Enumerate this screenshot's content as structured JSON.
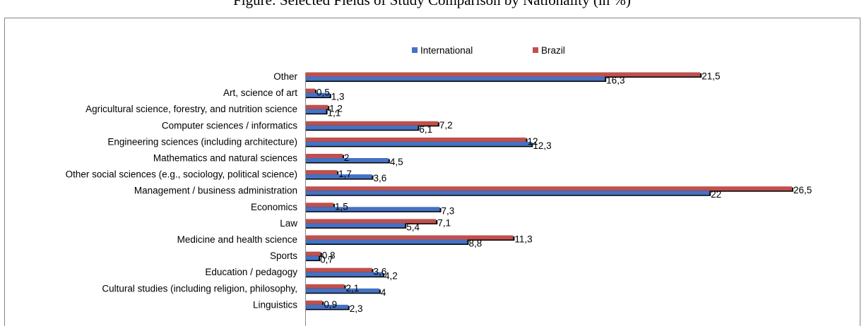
{
  "chart_data": {
    "type": "bar",
    "orientation": "horizontal",
    "title": "Figure: Selected Fields of Study Comparison by Nationality (in %)",
    "categories": [
      "Other",
      "Art, science of art",
      "Agricultural science, forestry, and nutrition science",
      "Computer sciences / informatics",
      "Engineering sciences (including architecture)",
      "Mathematics and natural sciences",
      "Other social sciences (e.g., sociology, political science)",
      "Management / business administration",
      "Economics",
      "Law",
      "Medicine and health science",
      "Sports",
      "Education / pedagogy",
      "Cultural studies (including religion, philosophy,",
      "Linguistics"
    ],
    "series": [
      {
        "name": "International",
        "color": "#4472C4",
        "values": [
          16.3,
          1.3,
          1.1,
          6.1,
          12.3,
          4.5,
          3.6,
          22,
          7.3,
          5.4,
          8.8,
          0.7,
          4.2,
          4,
          2.3
        ],
        "labels": [
          "16,3",
          "1,3",
          "1,1",
          "6,1",
          "12,3",
          "4,5",
          "3,6",
          "22",
          "7,3",
          "5,4",
          "8,8",
          "0,7",
          "4,2",
          "4",
          "2,3"
        ]
      },
      {
        "name": "Brazil",
        "color": "#C0504D",
        "values": [
          21.5,
          0.5,
          1.2,
          7.2,
          12,
          2,
          1.7,
          26.5,
          1.5,
          7.1,
          11.3,
          0.8,
          3.6,
          2.1,
          0.9
        ],
        "labels": [
          "21,5",
          "0,5",
          "1,2",
          "7,2",
          "12",
          "2",
          "1,7",
          "26,5",
          "1,5",
          "7,1",
          "11,3",
          "0,8",
          "3,6",
          "2,1",
          "0,9"
        ]
      }
    ],
    "xlim": [
      0,
      30
    ],
    "grid": false,
    "legend": "top-center"
  }
}
